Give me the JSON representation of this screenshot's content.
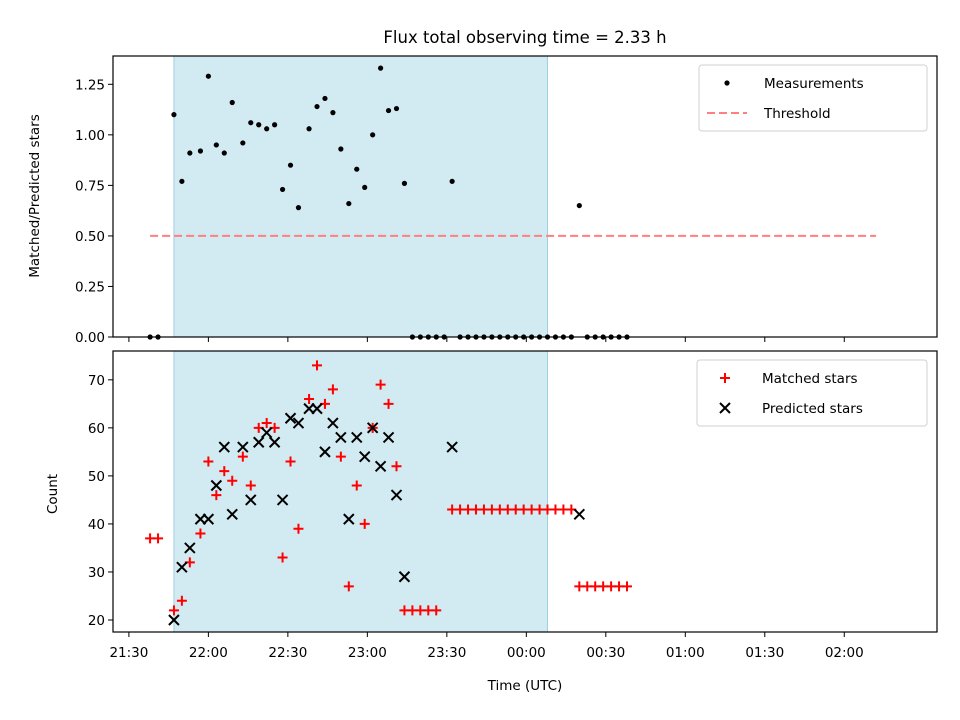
{
  "chart_data": [
    {
      "type": "scatter",
      "title": "Flux total observing time = 2.33 h",
      "ylabel": "Matched/Predicted stars",
      "xlabel": "",
      "xlim": [
        "21:24",
        "02:35"
      ],
      "ylim": [
        0,
        1.39
      ],
      "x_ticks": [
        "21:30",
        "22:00",
        "22:30",
        "23:00",
        "23:30",
        "00:00",
        "00:30",
        "01:00",
        "01:30",
        "02:00"
      ],
      "y_ticks": [
        "0.00",
        "0.25",
        "0.50",
        "0.75",
        "1.00",
        "1.25"
      ],
      "y_tick_values": [
        0,
        0.25,
        0.5,
        0.75,
        1.0,
        1.25
      ],
      "shaded_span": [
        "21:47",
        "00:08"
      ],
      "shaded_color": "#add8e6",
      "legend_position": "top-right",
      "series": [
        {
          "name": "Measurements",
          "marker": "dot",
          "color": "#000000",
          "points": [
            [
              "21:38",
              0
            ],
            [
              "21:41",
              0
            ],
            [
              "21:47",
              1.1
            ],
            [
              "21:50",
              0.77
            ],
            [
              "21:53",
              0.91
            ],
            [
              "21:57",
              0.92
            ],
            [
              "22:00",
              1.29
            ],
            [
              "22:03",
              0.95
            ],
            [
              "22:06",
              0.91
            ],
            [
              "22:09",
              1.16
            ],
            [
              "22:13",
              0.96
            ],
            [
              "22:16",
              1.06
            ],
            [
              "22:19",
              1.05
            ],
            [
              "22:22",
              1.03
            ],
            [
              "22:25",
              1.05
            ],
            [
              "22:28",
              0.73
            ],
            [
              "22:31",
              0.85
            ],
            [
              "22:34",
              0.64
            ],
            [
              "22:38",
              1.03
            ],
            [
              "22:41",
              1.14
            ],
            [
              "22:44",
              1.18
            ],
            [
              "22:47",
              1.11
            ],
            [
              "22:50",
              0.93
            ],
            [
              "22:53",
              0.66
            ],
            [
              "22:56",
              0.83
            ],
            [
              "22:59",
              0.74
            ],
            [
              "23:02",
              1.0
            ],
            [
              "23:05",
              1.33
            ],
            [
              "23:08",
              1.12
            ],
            [
              "23:11",
              1.13
            ],
            [
              "23:14",
              0.76
            ],
            [
              "23:17",
              0
            ],
            [
              "23:20",
              0
            ],
            [
              "23:23",
              0
            ],
            [
              "23:26",
              0
            ],
            [
              "23:29",
              0
            ],
            [
              "23:32",
              0.77
            ],
            [
              "23:35",
              0
            ],
            [
              "23:38",
              0
            ],
            [
              "23:41",
              0
            ],
            [
              "23:44",
              0
            ],
            [
              "23:47",
              0
            ],
            [
              "23:50",
              0
            ],
            [
              "23:53",
              0
            ],
            [
              "23:56",
              0
            ],
            [
              "23:59",
              0
            ],
            [
              "00:02",
              0
            ],
            [
              "00:05",
              0
            ],
            [
              "00:08",
              0
            ],
            [
              "00:11",
              0
            ],
            [
              "00:14",
              0
            ],
            [
              "00:17",
              0
            ],
            [
              "00:20",
              0.65
            ],
            [
              "00:23",
              0
            ],
            [
              "00:26",
              0
            ],
            [
              "00:29",
              0
            ],
            [
              "00:32",
              0
            ],
            [
              "00:35",
              0
            ],
            [
              "00:38",
              0
            ]
          ]
        },
        {
          "name": "Threshold",
          "marker": "dashed-line",
          "color": "#ff7f7f",
          "points": [
            [
              "21:38",
              0.5
            ],
            [
              "02:12",
              0.5
            ]
          ]
        }
      ]
    },
    {
      "type": "scatter",
      "title": "",
      "xlabel": "Time (UTC)",
      "ylabel": "Count",
      "xlim": [
        "21:24",
        "02:35"
      ],
      "ylim": [
        17.5,
        76
      ],
      "x_ticks": [
        "21:30",
        "22:00",
        "22:30",
        "23:00",
        "23:30",
        "00:00",
        "00:30",
        "01:00",
        "01:30",
        "02:00"
      ],
      "y_ticks": [
        "20",
        "30",
        "40",
        "50",
        "60",
        "70"
      ],
      "y_tick_values": [
        20,
        30,
        40,
        50,
        60,
        70
      ],
      "shaded_span": [
        "21:47",
        "00:08"
      ],
      "shaded_color": "#add8e6",
      "legend_position": "top-right",
      "series": [
        {
          "name": "Matched stars",
          "marker": "plus",
          "color": "#ff0000",
          "points": [
            [
              "21:38",
              37
            ],
            [
              "21:41",
              37
            ],
            [
              "21:47",
              22
            ],
            [
              "21:50",
              24
            ],
            [
              "21:53",
              32
            ],
            [
              "21:57",
              38
            ],
            [
              "22:00",
              53
            ],
            [
              "22:03",
              46
            ],
            [
              "22:06",
              51
            ],
            [
              "22:09",
              49
            ],
            [
              "22:13",
              54
            ],
            [
              "22:16",
              48
            ],
            [
              "22:19",
              60
            ],
            [
              "22:22",
              61
            ],
            [
              "22:25",
              60
            ],
            [
              "22:28",
              33
            ],
            [
              "22:31",
              53
            ],
            [
              "22:34",
              39
            ],
            [
              "22:38",
              66
            ],
            [
              "22:41",
              73
            ],
            [
              "22:44",
              65
            ],
            [
              "22:47",
              68
            ],
            [
              "22:50",
              54
            ],
            [
              "22:53",
              27
            ],
            [
              "22:56",
              48
            ],
            [
              "22:59",
              40
            ],
            [
              "23:02",
              60
            ],
            [
              "23:05",
              69
            ],
            [
              "23:08",
              65
            ],
            [
              "23:11",
              52
            ],
            [
              "23:14",
              22
            ],
            [
              "23:17",
              22
            ],
            [
              "23:20",
              22
            ],
            [
              "23:23",
              22
            ],
            [
              "23:26",
              22
            ],
            [
              "23:32",
              43
            ],
            [
              "23:35",
              43
            ],
            [
              "23:38",
              43
            ],
            [
              "23:41",
              43
            ],
            [
              "23:44",
              43
            ],
            [
              "23:47",
              43
            ],
            [
              "23:50",
              43
            ],
            [
              "23:53",
              43
            ],
            [
              "23:56",
              43
            ],
            [
              "23:59",
              43
            ],
            [
              "00:02",
              43
            ],
            [
              "00:05",
              43
            ],
            [
              "00:08",
              43
            ],
            [
              "00:11",
              43
            ],
            [
              "00:14",
              43
            ],
            [
              "00:17",
              43
            ],
            [
              "00:20",
              27
            ],
            [
              "00:23",
              27
            ],
            [
              "00:26",
              27
            ],
            [
              "00:29",
              27
            ],
            [
              "00:32",
              27
            ],
            [
              "00:35",
              27
            ],
            [
              "00:38",
              27
            ]
          ]
        },
        {
          "name": "Predicted stars",
          "marker": "x",
          "color": "#000000",
          "points": [
            [
              "21:47",
              20
            ],
            [
              "21:50",
              31
            ],
            [
              "21:53",
              35
            ],
            [
              "21:57",
              41
            ],
            [
              "22:00",
              41
            ],
            [
              "22:03",
              48
            ],
            [
              "22:06",
              56
            ],
            [
              "22:09",
              42
            ],
            [
              "22:13",
              56
            ],
            [
              "22:16",
              45
            ],
            [
              "22:19",
              57
            ],
            [
              "22:22",
              59
            ],
            [
              "22:25",
              57
            ],
            [
              "22:28",
              45
            ],
            [
              "22:31",
              62
            ],
            [
              "22:34",
              61
            ],
            [
              "22:38",
              64
            ],
            [
              "22:41",
              64
            ],
            [
              "22:44",
              55
            ],
            [
              "22:47",
              61
            ],
            [
              "22:50",
              58
            ],
            [
              "22:53",
              41
            ],
            [
              "22:56",
              58
            ],
            [
              "22:59",
              54
            ],
            [
              "23:02",
              60
            ],
            [
              "23:05",
              52
            ],
            [
              "23:08",
              58
            ],
            [
              "23:11",
              46
            ],
            [
              "23:14",
              29
            ],
            [
              "23:32",
              56
            ],
            [
              "00:20",
              42
            ]
          ]
        }
      ]
    }
  ]
}
